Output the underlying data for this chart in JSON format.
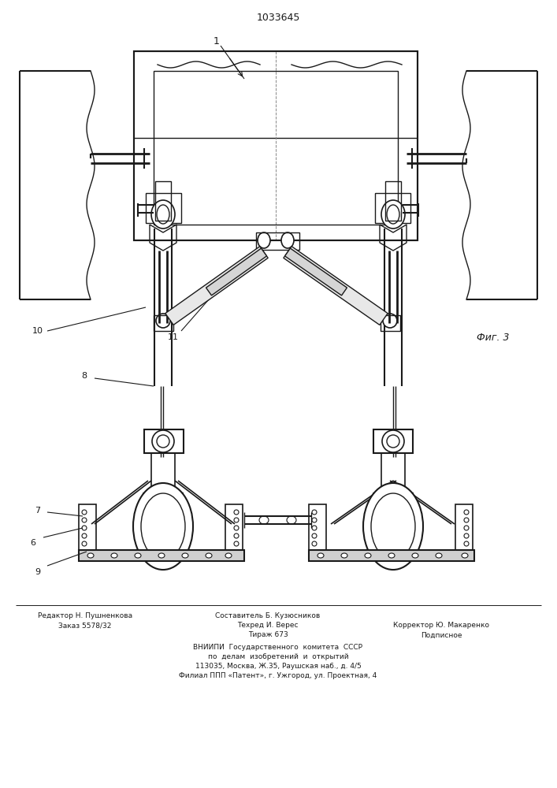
{
  "patent_number": "1033645",
  "fig_label": "Фиг. 3",
  "footer_left_line1": "Редактор Н. Пушненкова",
  "footer_left_line2": "Заказ 5578/32",
  "footer_mid_line1": "Составитель Б. Кузюсников",
  "footer_mid_line2": "Техред И. Верес",
  "footer_mid_line3": "Тираж 673",
  "footer_right_line1": "Корректор Ю. Макаренко",
  "footer_right_line2": "Подписное",
  "footer_bottom1": "ВНИИПИ  Государственного  комитета  СССР",
  "footer_bottom2": "по  делам  изобретений  и  открытий",
  "footer_bottom3": "113035, Москва, Ж․35, Раушская наб., д. 4/5",
  "footer_bottom4": "Филиал ППП «Патент», г. Ужгород, ул. Проектная, 4",
  "bg_color": "#ffffff",
  "line_color": "#1a1a1a"
}
